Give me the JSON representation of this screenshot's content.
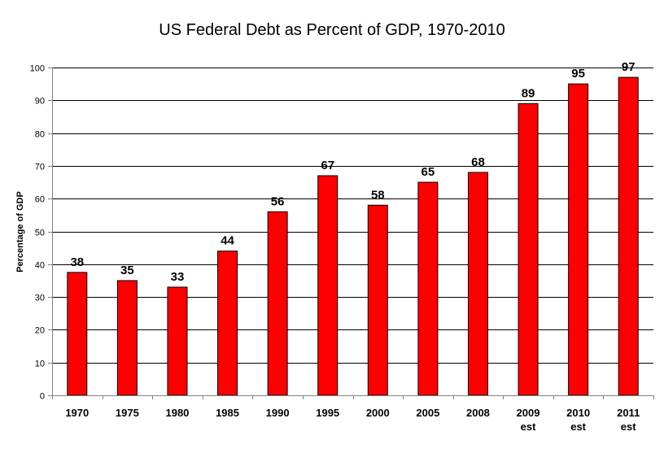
{
  "chart_data": {
    "type": "bar",
    "title": "US Federal Debt as Percent of GDP, 1970-2010",
    "xlabel": "",
    "ylabel": "Percentage of GDP",
    "categories": [
      "1970",
      "1975",
      "1980",
      "1985",
      "1990",
      "1995",
      "2000",
      "2005",
      "2008",
      "2009 est",
      "2010 est",
      "2011 est"
    ],
    "category_lines": [
      [
        "1970"
      ],
      [
        "1975"
      ],
      [
        "1980"
      ],
      [
        "1985"
      ],
      [
        "1990"
      ],
      [
        "1995"
      ],
      [
        "2000"
      ],
      [
        "2005"
      ],
      [
        "2008"
      ],
      [
        "2009",
        "est"
      ],
      [
        "2010",
        "est"
      ],
      [
        "2011",
        "est"
      ]
    ],
    "values": [
      37.5,
      35,
      33,
      44,
      56,
      67,
      58,
      65,
      68,
      89,
      95,
      97
    ],
    "data_labels": [
      "38",
      "35",
      "33",
      "44",
      "56",
      "67",
      "58",
      "65",
      "68",
      "89",
      "95",
      "97"
    ],
    "ylim": [
      0,
      100
    ],
    "yticks": [
      0,
      10,
      20,
      30,
      40,
      50,
      60,
      70,
      80,
      90,
      100
    ],
    "grid": true,
    "legend": "none",
    "bar_color": "#ff0000",
    "bar_edge_color": "#000000",
    "grid_color": "#000000",
    "axis_color": "#808080"
  }
}
